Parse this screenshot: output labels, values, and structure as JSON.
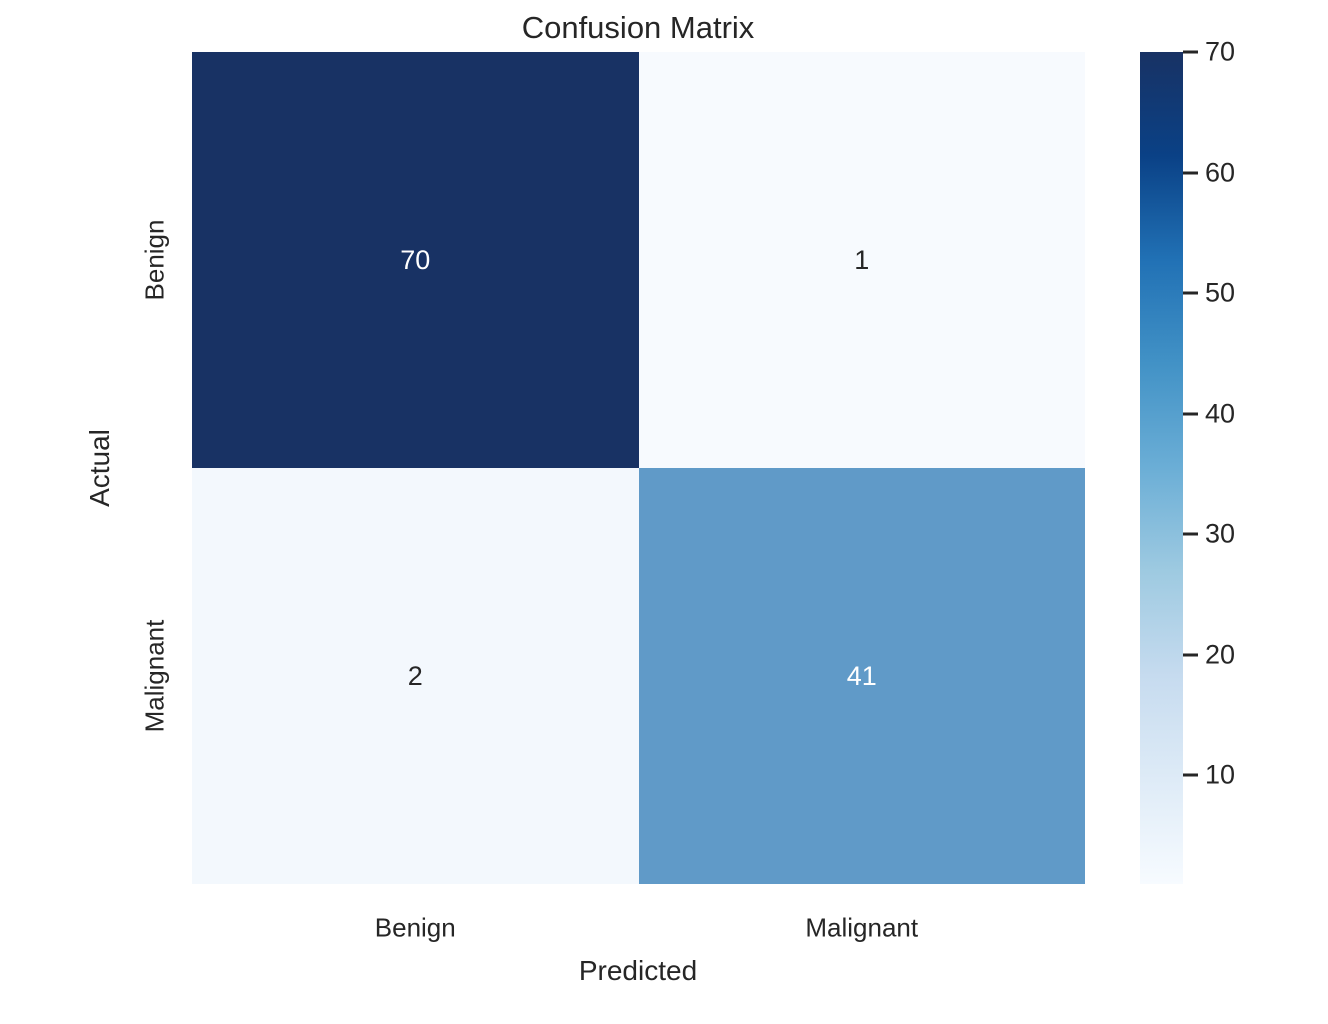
{
  "title": "Confusion Matrix",
  "axes": {
    "xlabel": "Predicted",
    "ylabel": "Actual"
  },
  "colors": {
    "background": "#ffffff",
    "text": "#262626",
    "cell_dark": "#183264",
    "cell_mid": "#609ac8",
    "cell_light_1": "#f7fafe",
    "cell_light_2": "#f3f8fd",
    "annotation_light": "#ffffff",
    "annotation_dark": "#262626"
  },
  "chart_data": {
    "type": "heatmap",
    "title": "Confusion Matrix",
    "xlabel": "Predicted",
    "ylabel": "Actual",
    "x_categories": [
      "Benign",
      "Malignant"
    ],
    "y_categories": [
      "Benign",
      "Malignant"
    ],
    "matrix": [
      [
        70,
        1
      ],
      [
        2,
        41
      ]
    ],
    "vmin": 1,
    "vmax": 70,
    "colormap": "Blues",
    "colorbar_ticks": [
      70,
      60,
      50,
      40,
      30,
      20,
      10
    ],
    "legend_position": "right-colorbar",
    "grid": false,
    "cell_colors": [
      [
        "#183264",
        "#f7fafe"
      ],
      [
        "#f3f8fd",
        "#609ac8"
      ]
    ],
    "cell_text_colors": [
      [
        "#ffffff",
        "#262626"
      ],
      [
        "#262626",
        "#ffffff"
      ]
    ]
  }
}
